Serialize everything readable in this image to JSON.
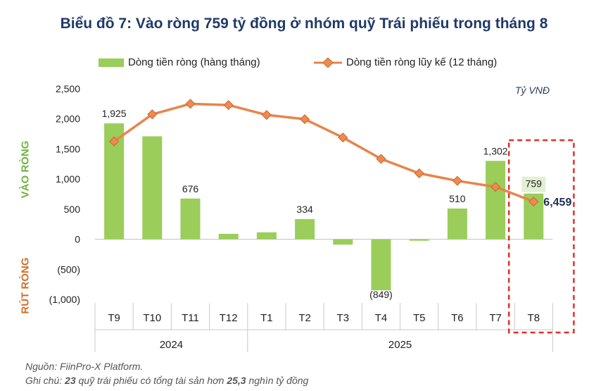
{
  "chart_data": {
    "type": "bar+line",
    "title": "Biểu đồ 7: Vào ròng 759 tỷ đồng ở nhóm quỹ Trái phiếu trong tháng 8",
    "unit": "Tỷ VNĐ",
    "ylabel_positive": "VÀO RÒNG",
    "ylabel_negative": "RÚT RÒNG",
    "ylim": [
      -1000,
      2500
    ],
    "yticks": [
      2500,
      2000,
      1500,
      1000,
      500,
      0,
      -500,
      -1000
    ],
    "ytick_labels": [
      "2,500",
      "2,000",
      "1,500",
      "1,000",
      "500",
      "0",
      "(500)",
      "(1,000)"
    ],
    "categories": [
      "T9",
      "T10",
      "T11",
      "T12",
      "T1",
      "T2",
      "T3",
      "T4",
      "T5",
      "T6",
      "T7",
      "T8"
    ],
    "year_groups": [
      {
        "label": "2024",
        "start": 0,
        "end": 3
      },
      {
        "label": "2025",
        "start": 4,
        "end": 11
      }
    ],
    "series": [
      {
        "name": "Dòng tiền ròng (hàng tháng)",
        "type": "bar",
        "color": "#9acd5a",
        "values": [
          1925,
          1710,
          676,
          90,
          115,
          334,
          -90,
          -849,
          -25,
          510,
          1302,
          759
        ],
        "data_labels": [
          "1,925",
          "",
          "676",
          "",
          "",
          "334",
          "",
          "(849)",
          "",
          "510",
          "1,302",
          "759"
        ]
      },
      {
        "name": "Dòng tiền ròng lũy kế (12 tháng)",
        "type": "line",
        "color": "#e8844a",
        "marker_color": "#ee8a4e",
        "values": [
          1625,
          2075,
          2250,
          2230,
          2065,
          1995,
          1690,
          1335,
          1095,
          970,
          870,
          625
        ],
        "end_label": "6,459"
      }
    ],
    "highlight": {
      "category": "T8",
      "label_bg": "#e3efd3"
    }
  },
  "footer": {
    "source": "Nguồn: FiinPro-X Platform.",
    "note_prefix": "Ghi chú: ",
    "note_num1": "23",
    "note_mid": " quỹ trái phiếu có tổng tài sản hơn ",
    "note_num2": "25,3",
    "note_suffix": " nghìn tỷ đồng"
  }
}
